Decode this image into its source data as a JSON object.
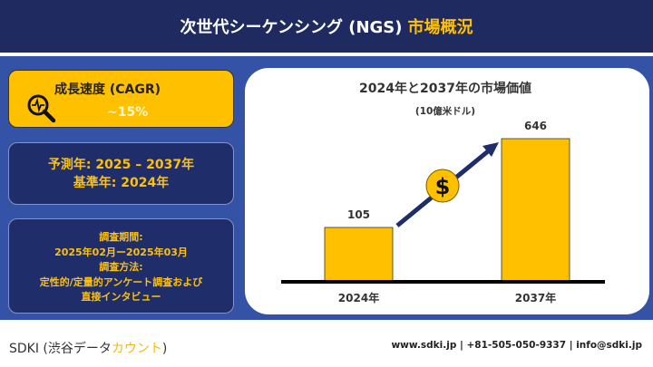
{
  "header": {
    "title": "次世代シーケンシング (NGS)",
    "title_highlight": "市場概況"
  },
  "cagr": {
    "label": "成長速度 (CAGR)",
    "value": "~15%",
    "icon": "magnifier-pulse-icon"
  },
  "forecast": {
    "line1": "予測年: 2025 – 2037年",
    "line2": "基準年: 2024年"
  },
  "survey": {
    "period_label": "調査期間:",
    "period": "2025年02月ー2025年03月",
    "method_label": "調査方法:",
    "method1": "定性的/定量的アンケート調査および",
    "method2": "直接インタビュー"
  },
  "chart_data": {
    "type": "bar",
    "title": "2024年と2037年の市場価値",
    "subtitle": "(10億米ドル)",
    "categories": [
      "2024年",
      "2037年"
    ],
    "values": [
      105,
      646
    ],
    "value_labels": [
      "105",
      "646"
    ],
    "bar_color": "#ffc000",
    "arrow_color": "#1f2d6b",
    "icon": "dollar-coin-icon"
  },
  "footer": {
    "brand": "SDKI (渋谷データ",
    "brand_highlight": "カウント",
    "brand_close": ")",
    "contact": "www.sdki.jp | +81-505-050-9337 | info@sdki.jp"
  }
}
